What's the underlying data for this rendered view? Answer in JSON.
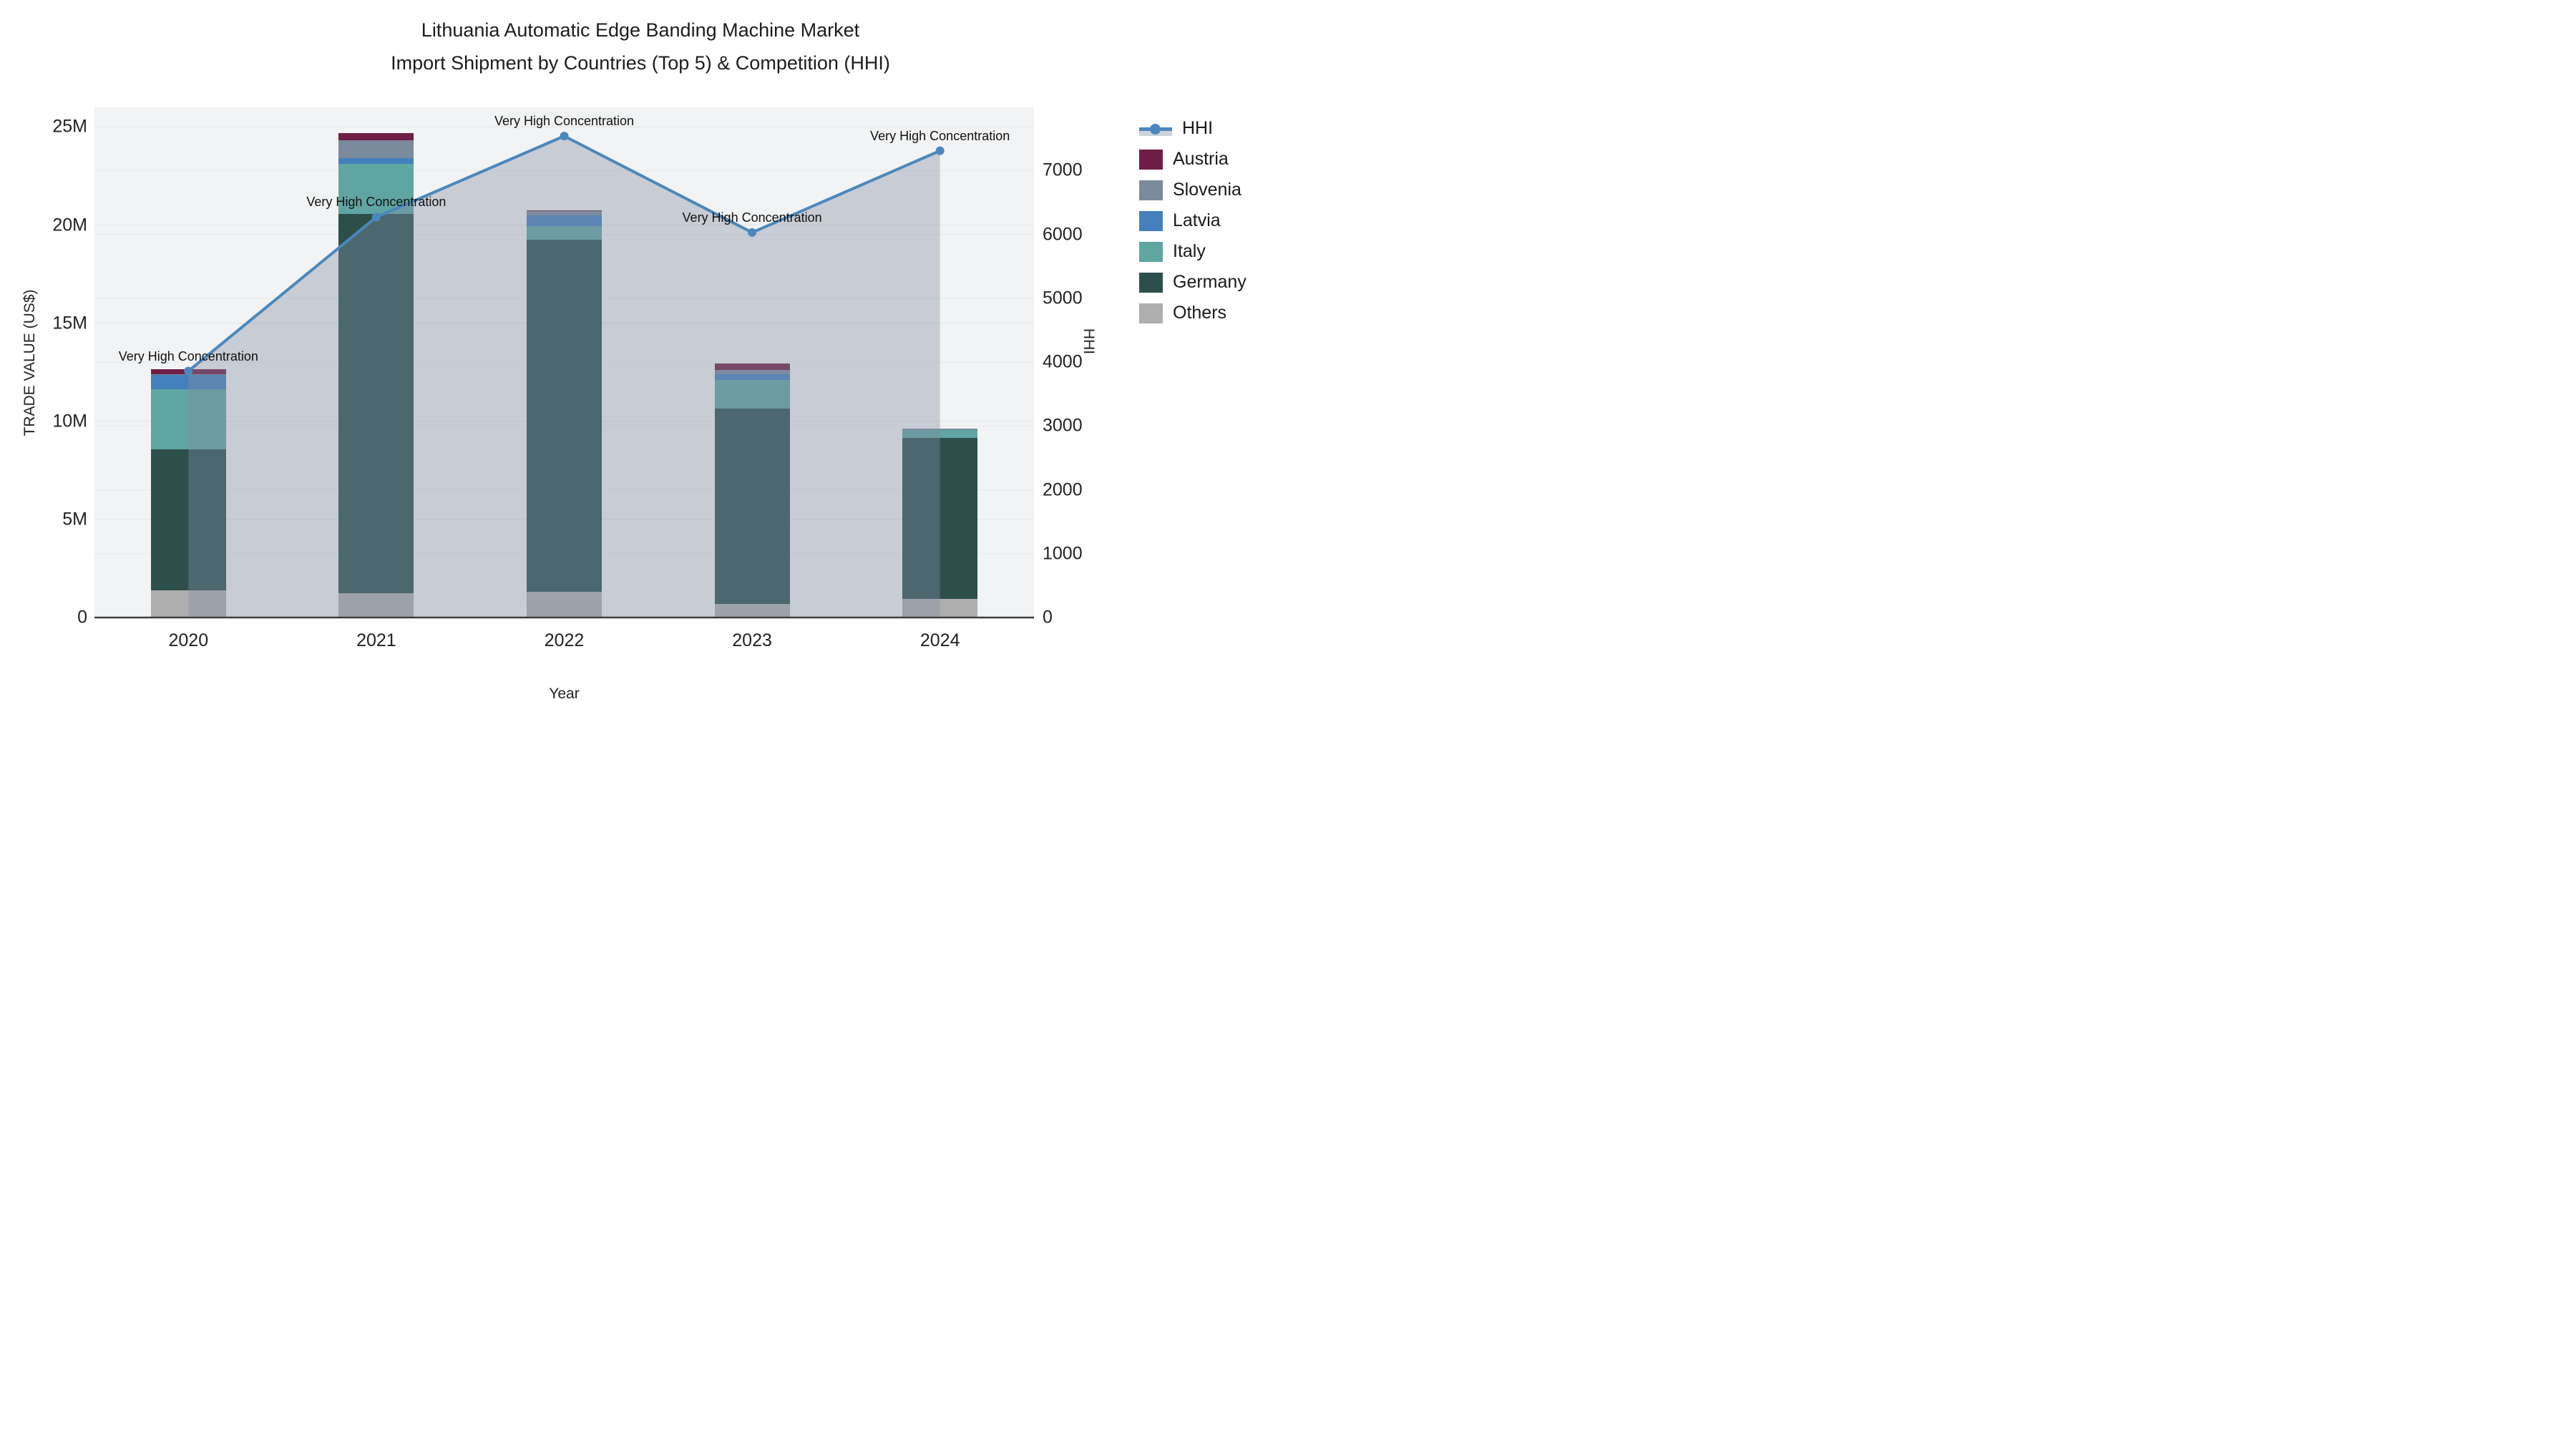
{
  "chart_data": {
    "type": "bar",
    "subtype": "stacked-bars-with-line-overlay",
    "title_line1": "Lithuania Automatic Edge Banding Machine Market",
    "title_line2": "Import Shipment by Countries (Top 5) & Competition (HHI)",
    "xlabel": "Year",
    "ylabel_left": "TRADE VALUE (US$)",
    "ylabel_right": "HHI",
    "categories": [
      "2020",
      "2021",
      "2022",
      "2023",
      "2024"
    ],
    "series": [
      {
        "name": "Austria",
        "values": [
          0.25,
          0.38,
          0.05,
          0.33,
          0.0
        ]
      },
      {
        "name": "Slovenia",
        "values": [
          0.05,
          0.89,
          0.22,
          0.24,
          0.06
        ]
      },
      {
        "name": "Latvia",
        "values": [
          0.73,
          0.29,
          0.56,
          0.27,
          0.0
        ]
      },
      {
        "name": "Italy",
        "values": [
          3.07,
          2.55,
          0.66,
          1.46,
          0.42
        ]
      },
      {
        "name": "Germany",
        "values": [
          7.16,
          19.34,
          17.96,
          9.97,
          8.19
        ]
      },
      {
        "name": "Others",
        "values": [
          1.4,
          1.24,
          1.31,
          0.69,
          0.95
        ]
      }
    ],
    "stack_order_bottom_to_top": [
      "Others",
      "Germany",
      "Italy",
      "Latvia",
      "Slovenia",
      "Austria"
    ],
    "bar_totals_millions": [
      12.66,
      24.69,
      20.76,
      12.96,
      9.62
    ],
    "line_series": {
      "name": "HHI",
      "axis": "right",
      "values": [
        3860,
        6270,
        7540,
        6030,
        7310
      ],
      "area_fill": true
    },
    "annotations": [
      {
        "x": "2020",
        "text": "Very High Concentration"
      },
      {
        "x": "2021",
        "text": "Very High Concentration"
      },
      {
        "x": "2022",
        "text": "Very High Concentration"
      },
      {
        "x": "2023",
        "text": "Very High Concentration"
      },
      {
        "x": "2024",
        "text": "Very High Concentration"
      }
    ],
    "y_left_ticks": [
      "0",
      "5M",
      "10M",
      "15M",
      "20M",
      "25M"
    ],
    "y_left_tick_values": [
      0,
      5,
      10,
      15,
      20,
      25
    ],
    "y_left_range_millions": [
      0,
      26.0
    ],
    "y_right_ticks": [
      "0",
      "1000",
      "2000",
      "3000",
      "4000",
      "5000",
      "6000",
      "7000"
    ],
    "y_right_tick_values": [
      0,
      1000,
      2000,
      3000,
      4000,
      5000,
      6000,
      7000
    ],
    "y_right_range": [
      0,
      7990
    ],
    "grid": true,
    "legend_position": "right",
    "legend_order": [
      "HHI",
      "Austria",
      "Slovenia",
      "Latvia",
      "Italy",
      "Germany",
      "Others"
    ],
    "colors": {
      "Austria": "#6e1e45",
      "Slovenia": "#7b8a9d",
      "Latvia": "#4480bb",
      "Italy": "#5fa5a2",
      "Germany": "#2d4f4c",
      "Others": "#aeaeae",
      "hhi_line": "#4b87bb",
      "hhi_area_fill": "rgba(130,142,162,0.38)",
      "hhi_legend_band": "#ccd3dc",
      "plot_background": "#f2f3f4",
      "gridline": "#e7e9eb",
      "axis_line": "#3f3f3f",
      "text": "#1c1c1c"
    }
  }
}
